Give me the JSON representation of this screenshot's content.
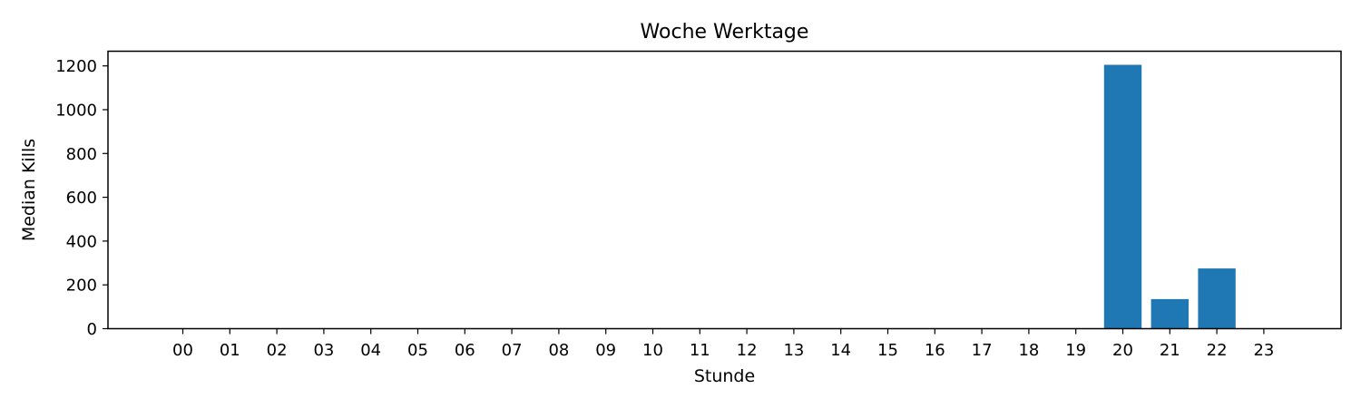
{
  "chart_data": {
    "type": "bar",
    "title": "Woche Werktage",
    "xlabel": "Stunde",
    "ylabel": "Median Kills",
    "categories": [
      "00",
      "01",
      "02",
      "03",
      "04",
      "05",
      "06",
      "07",
      "08",
      "09",
      "10",
      "11",
      "12",
      "13",
      "14",
      "15",
      "16",
      "17",
      "18",
      "19",
      "20",
      "21",
      "22",
      "23"
    ],
    "values": [
      0,
      0,
      0,
      0,
      0,
      0,
      0,
      0,
      0,
      0,
      0,
      0,
      0,
      0,
      0,
      0,
      0,
      0,
      0,
      0,
      1205,
      135,
      275,
      0
    ],
    "ylim": [
      0,
      1267
    ],
    "yticks": [
      0,
      200,
      400,
      600,
      800,
      1000,
      1200
    ],
    "grid": false,
    "bar_color": "#1f77b4"
  }
}
